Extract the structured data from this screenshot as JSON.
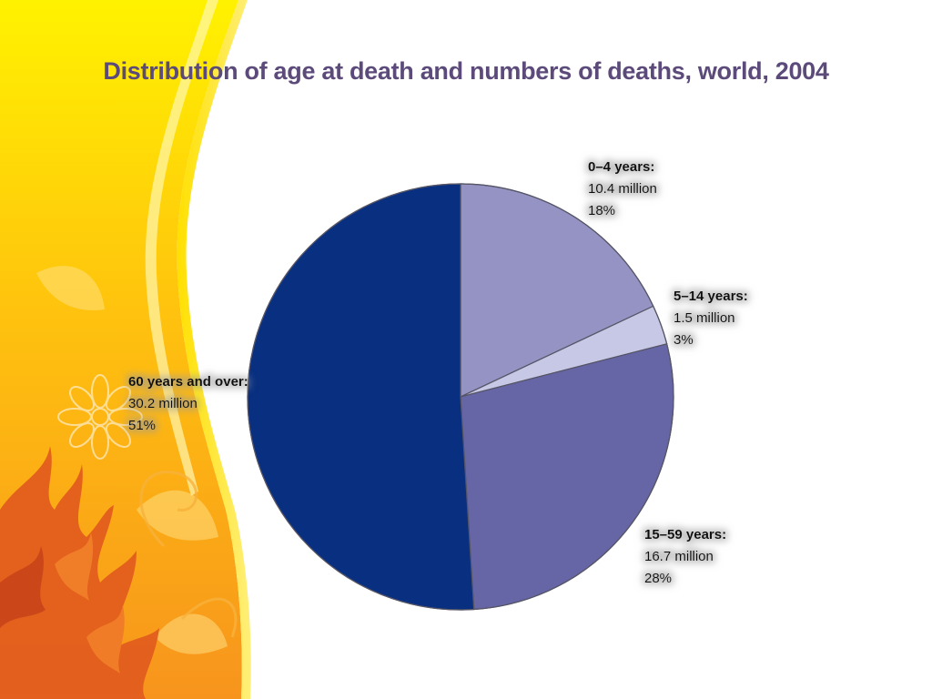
{
  "slide": {
    "title": "Distribution of age at death and numbers of deaths, world, 2004",
    "background_color": "#ffffff",
    "decoration": "yellow-orange-floral-swoosh"
  },
  "chart_data": {
    "type": "pie",
    "title": "Distribution of age at death and numbers of deaths, world, 2004",
    "slices": [
      {
        "category": "0–4 years:",
        "value_label": "10.4 million",
        "percent_label": "18%",
        "percent": 18,
        "color": "#9493c3"
      },
      {
        "category": "5–14 years:",
        "value_label": "1.5 million",
        "percent_label": "3%",
        "percent": 3,
        "color": "#c7c7e6"
      },
      {
        "category": "15–59 years:",
        "value_label": "16.7 million",
        "percent_label": "28%",
        "percent": 28,
        "color": "#6665a6"
      },
      {
        "category": "60 years and over:",
        "value_label": "30.2 million",
        "percent_label": "51%",
        "percent": 51,
        "color": "#082f80"
      }
    ],
    "start_angle": "12 o'clock",
    "direction": "clockwise",
    "legend": "none",
    "labels": "outside"
  }
}
